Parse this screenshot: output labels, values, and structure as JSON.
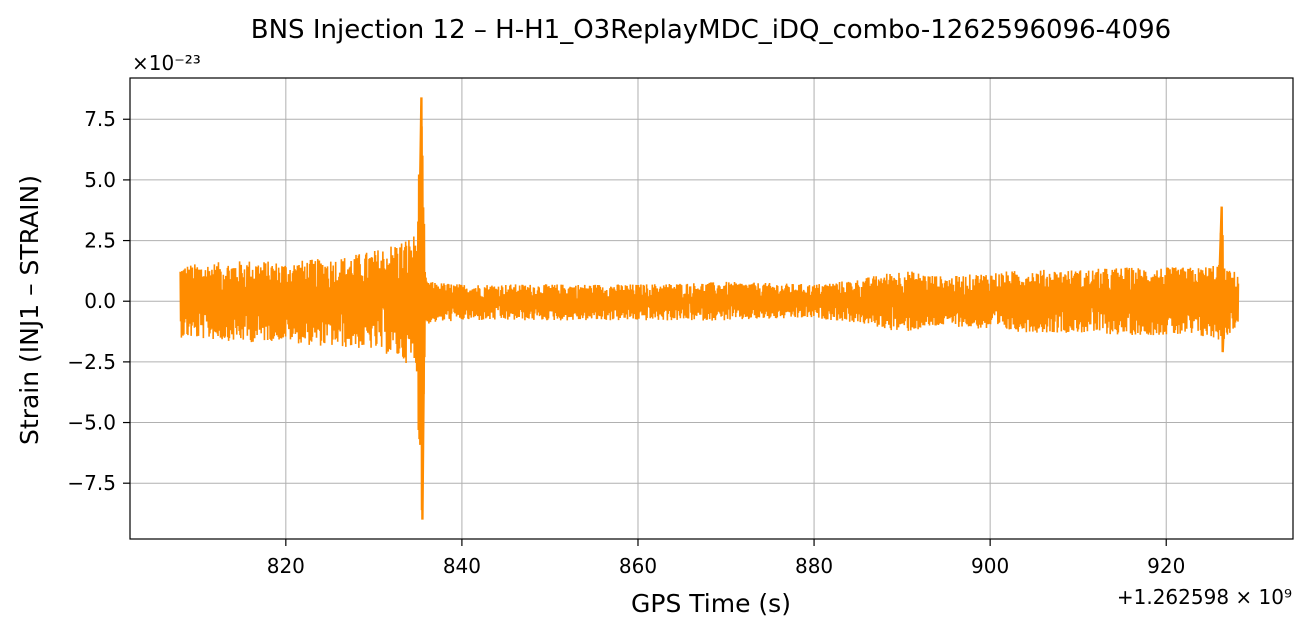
{
  "chart_data": {
    "type": "line",
    "title": "BNS Injection 12 – H-H1_O3ReplayMDC_iDQ_combo-1262596096-4096",
    "xlabel": "GPS Time (s)",
    "ylabel": "Strain (INJ1 – STRAIN)",
    "x_offset_label": "+1.262598 × 10⁹",
    "y_scale_label": "×10⁻²³",
    "x_ticks": [
      820,
      840,
      860,
      880,
      900,
      920
    ],
    "x_tick_labels": [
      "820",
      "840",
      "860",
      "880",
      "900",
      "920"
    ],
    "y_ticks": [
      -7.5,
      -5.0,
      -2.5,
      0.0,
      2.5,
      5.0,
      7.5
    ],
    "y_tick_labels": [
      "−7.5",
      "−5.0",
      "−2.5",
      "0.0",
      "2.5",
      "5.0",
      "7.5"
    ],
    "xlim": [
      802.3,
      934.4
    ],
    "ylim": [
      -9.8,
      9.2
    ],
    "grid": true,
    "series": [
      {
        "color": "#ff8c00",
        "envelope_x": [
          808.0,
          812.0,
          816.0,
          820.0,
          822.0,
          826.0,
          830.0,
          833.0,
          834.8,
          835.4,
          835.9,
          836.5,
          840.0,
          850.0,
          860.0,
          870.0,
          880.0,
          885.0,
          890.0,
          895.0,
          900.0,
          905.0,
          910.0,
          915.0,
          920.0,
          924.0,
          926.0,
          926.3,
          926.6,
          927.0,
          928.2
        ],
        "envelope_max": [
          1.5,
          1.6,
          1.7,
          1.6,
          1.7,
          1.8,
          2.1,
          2.5,
          2.8,
          8.4,
          1.0,
          0.8,
          0.7,
          0.7,
          0.7,
          0.8,
          0.7,
          0.9,
          1.3,
          1.0,
          1.2,
          1.3,
          1.3,
          1.4,
          1.4,
          1.4,
          1.6,
          3.9,
          1.5,
          1.3,
          1.2
        ],
        "envelope_min": [
          -1.5,
          -1.6,
          -1.7,
          -1.6,
          -1.8,
          -1.9,
          -2.0,
          -2.4,
          -2.8,
          -9.0,
          -1.0,
          -0.9,
          -0.8,
          -0.8,
          -0.8,
          -0.8,
          -0.7,
          -0.9,
          -1.3,
          -1.0,
          -1.2,
          -1.3,
          -1.3,
          -1.4,
          -1.4,
          -1.5,
          -1.6,
          -2.1,
          -1.6,
          -1.4,
          -1.0
        ],
        "spikes": [
          {
            "x": 835.4,
            "y_max": 8.4,
            "y_min": -9.0
          },
          {
            "x": 926.3,
            "y_max": 3.9,
            "y_min": -2.1
          }
        ]
      }
    ]
  }
}
